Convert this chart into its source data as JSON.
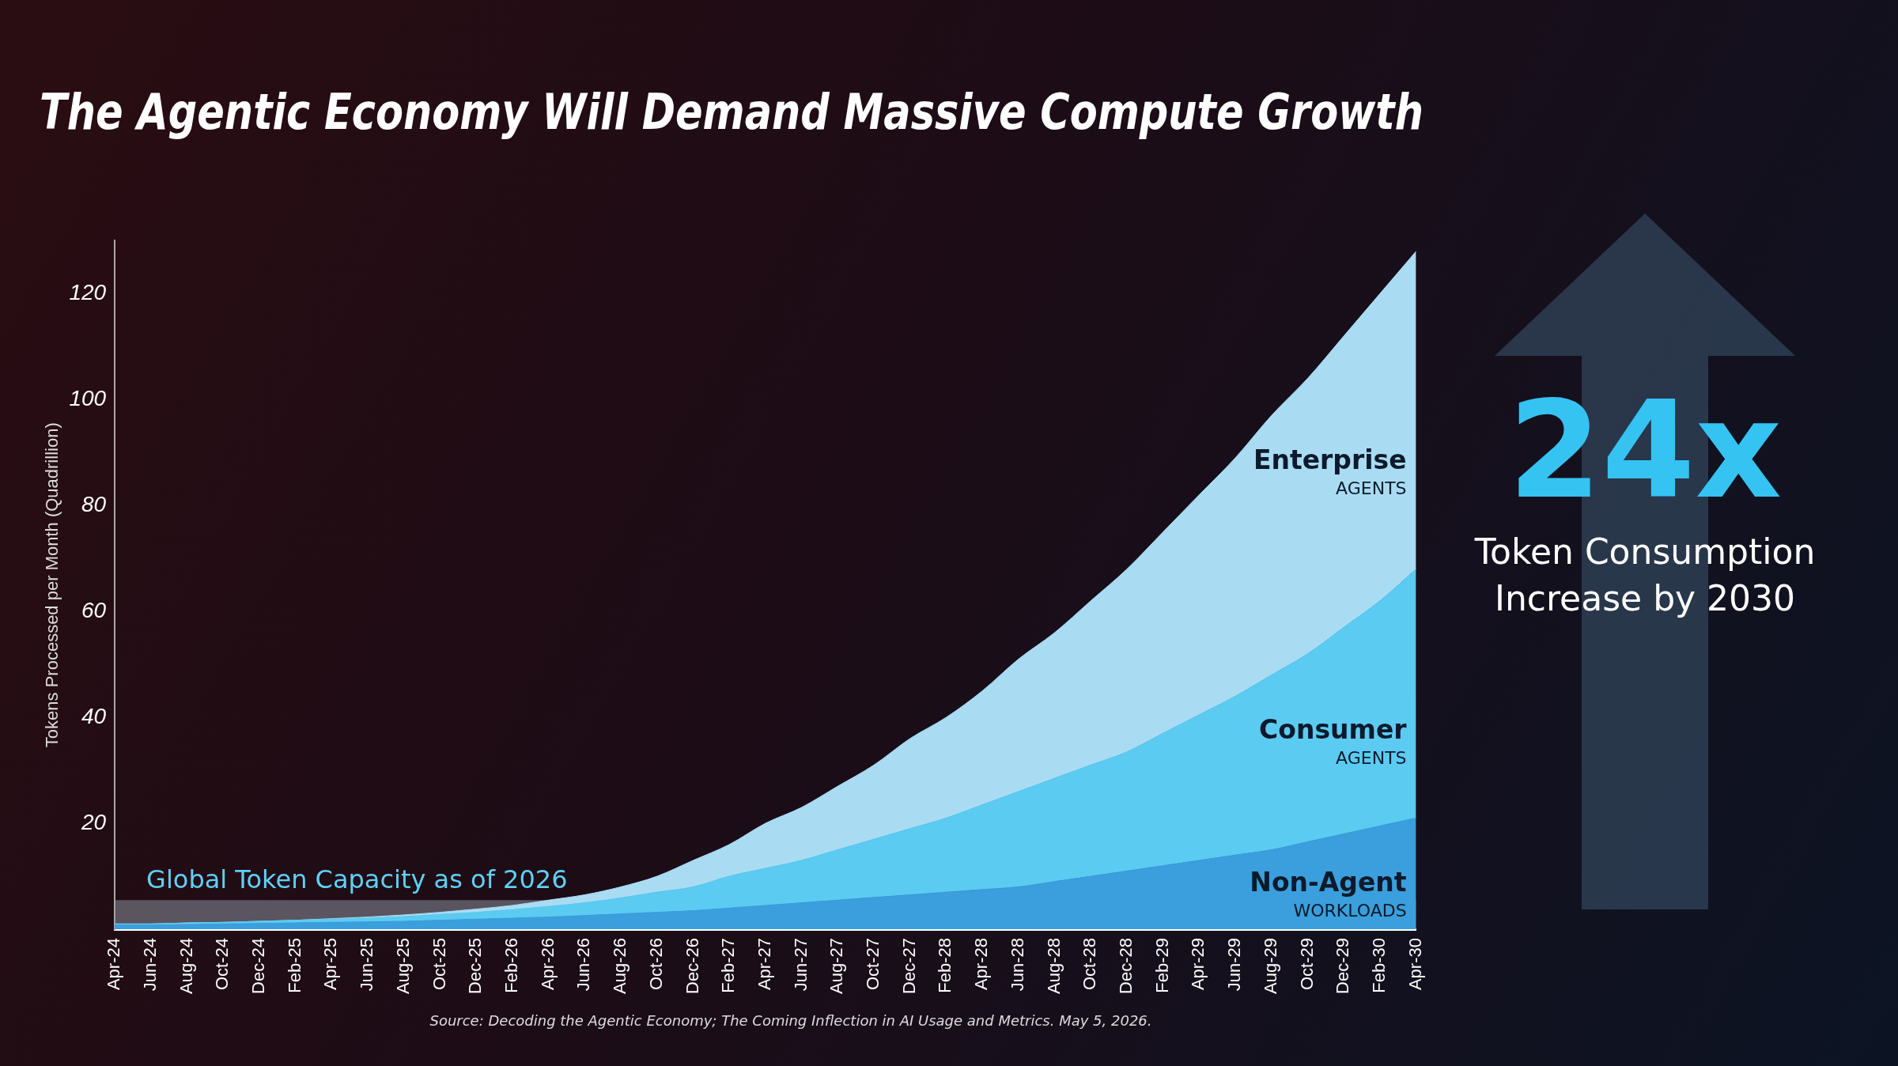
{
  "chart_data": {
    "type": "area",
    "title": "The Agentic Economy Will Demand Massive Compute Growth",
    "ylabel": "Tokens Processed per Month (Quadrillion)",
    "categories": [
      "Apr-24",
      "Jun-24",
      "Aug-24",
      "Oct-24",
      "Dec-24",
      "Feb-25",
      "Apr-25",
      "Jun-25",
      "Aug-25",
      "Oct-25",
      "Dec-25",
      "Feb-26",
      "Apr-26",
      "Jun-26",
      "Aug-26",
      "Oct-26",
      "Dec-26",
      "Feb-27",
      "Apr-27",
      "Jun-27",
      "Aug-27",
      "Oct-27",
      "Dec-27",
      "Feb-28",
      "Apr-28",
      "Jun-28",
      "Aug-28",
      "Oct-28",
      "Dec-28",
      "Feb-29",
      "Apr-29",
      "Jun-29",
      "Aug-29",
      "Oct-29",
      "Dec-29",
      "Feb-30",
      "Apr-30"
    ],
    "series": [
      {
        "name": "Non-Agent\nWORKLOADS",
        "color": "#3a9fdc",
        "values": [
          0.8,
          0.8,
          0.9,
          1.0,
          1.1,
          1.2,
          1.3,
          1.4,
          1.5,
          1.7,
          1.9,
          2.1,
          2.3,
          2.6,
          2.9,
          3.2,
          3.5,
          4,
          4.5,
          5,
          5.5,
          6,
          6.5,
          7,
          7.5,
          8,
          9,
          10,
          11,
          12,
          13,
          14,
          15,
          16.5,
          18,
          19.5,
          21
        ]
      },
      {
        "name": "Consumer\nAGENTS",
        "color": "#5ccbf2",
        "values": [
          0.2,
          0.2,
          0.3,
          0.3,
          0.4,
          0.5,
          0.6,
          0.7,
          0.9,
          1.1,
          1.3,
          1.6,
          2.0,
          2.4,
          3,
          3.8,
          4.5,
          6,
          7,
          8,
          9.5,
          11,
          12.5,
          14,
          16,
          18,
          19.5,
          21,
          22.5,
          25,
          27.5,
          30,
          33,
          35.5,
          39,
          42.5,
          47
        ]
      },
      {
        "name": "Enterprise\nAGENTS",
        "color": "#a9dcf3",
        "values": [
          0,
          0,
          0,
          0,
          0,
          0,
          0.1,
          0.2,
          0.3,
          0.4,
          0.6,
          0.8,
          1.2,
          1.5,
          2.1,
          3,
          5,
          6,
          8.5,
          10,
          12,
          14,
          17,
          19,
          21.5,
          25,
          27.5,
          31,
          34.5,
          38,
          41.5,
          45,
          49,
          52,
          55,
          58,
          60
        ]
      }
    ],
    "stacked": true,
    "ylim": [
      0,
      130
    ],
    "yticks": [
      20,
      40,
      60,
      80,
      100,
      120
    ],
    "grid": false,
    "legend": false,
    "bands": [
      {
        "axis": "y",
        "from": 0,
        "to": 5.5,
        "label": "Global Token Capacity as of 2026",
        "color": "#8a929e"
      }
    ],
    "annotations": [
      "24x",
      "Token Consumption Increase by 2030",
      "Source: Decoding the Agentic Economy; The Coming Inflection in AI Usage and Metrics. May 5, 2026."
    ]
  }
}
